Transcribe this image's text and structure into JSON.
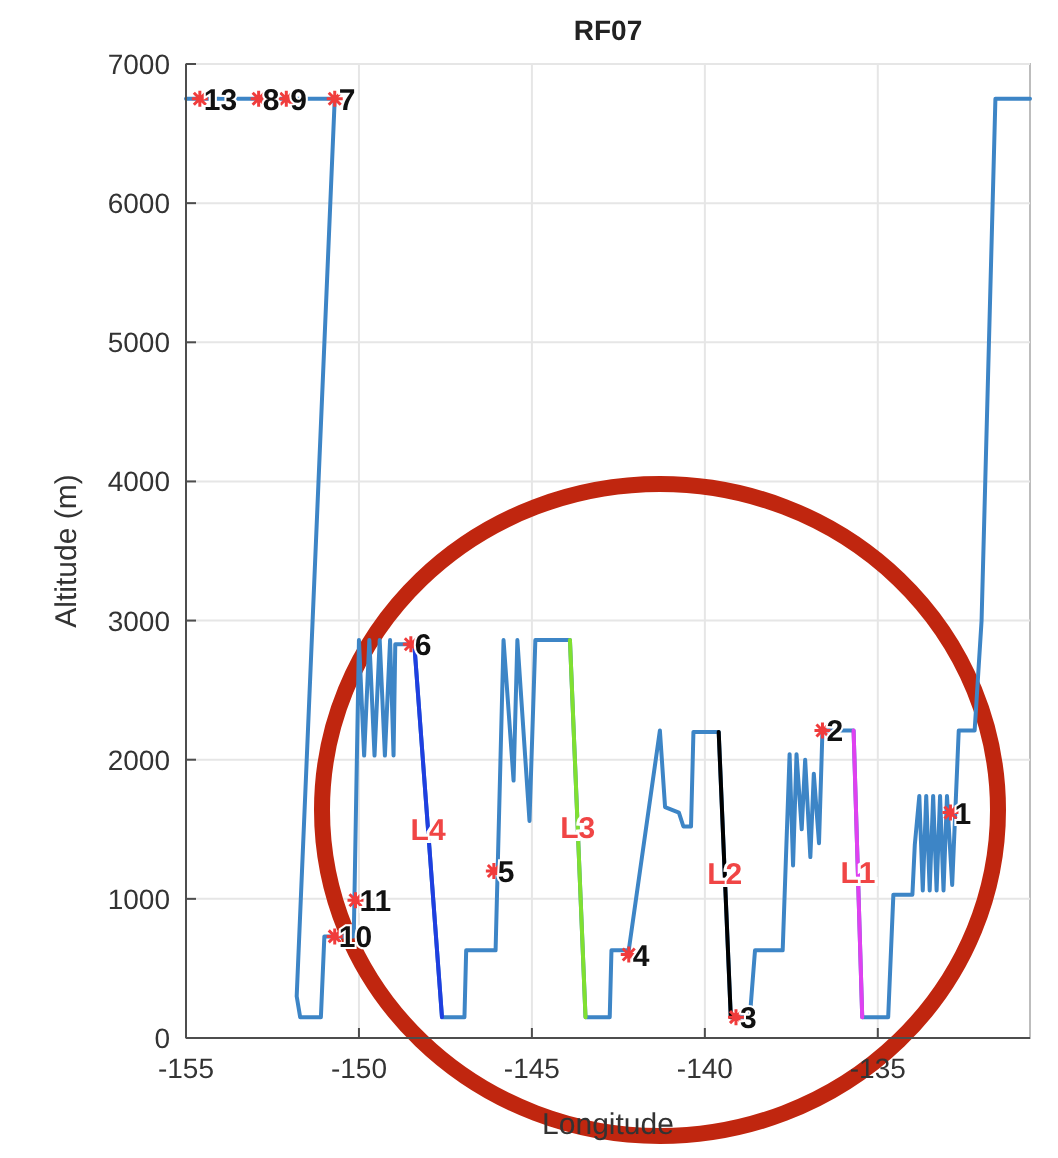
{
  "chart_data": {
    "type": "line",
    "title": "RF07",
    "xlabel": "Longitude",
    "ylabel": "Altitude (m)",
    "xlim": [
      -155,
      -130.6
    ],
    "xticks": [
      -155,
      -150,
      -145,
      -140,
      -135
    ],
    "ylim": [
      0,
      7000
    ],
    "yticks": [
      0,
      1000,
      2000,
      3000,
      4000,
      5000,
      6000,
      7000
    ],
    "grid": true,
    "line_style": "solid",
    "series": [
      {
        "color": "#3d85c6",
        "x": [
          -155,
          -150.7,
          -151.8,
          -151.7,
          -151.1,
          -151.0,
          -150.55,
          -150.15,
          -150.0,
          -149.85,
          -149.7,
          -149.55,
          -149.4,
          -149.25,
          -149.1,
          -149.0,
          -148.95,
          -148.4,
          -147.6,
          -146.95,
          -146.9,
          -146.05,
          -145.82,
          -145.53,
          -145.42,
          -145.07,
          -144.9,
          -143.9,
          -143.45,
          -142.75,
          -142.7,
          -142.2,
          -141.3,
          -141.15,
          -140.75,
          -140.62,
          -140.4,
          -140.33,
          -139.6,
          -139.25,
          -138.7,
          -138.55,
          -137.75,
          -137.55,
          -137.45,
          -137.35,
          -137.2,
          -137.1,
          -136.95,
          -136.85,
          -136.7,
          -136.6,
          -135.7,
          -135.45,
          -134.7,
          -134.55,
          -134.0,
          -133.93,
          -133.8,
          -133.7,
          -133.6,
          -133.5,
          -133.4,
          -133.3,
          -133.2,
          -133.1,
          -133.0,
          -132.85,
          -132.66,
          -132.2,
          -132.0,
          -131.6,
          -130.6
        ],
        "values": [
          6750,
          6750,
          300,
          150,
          150,
          730,
          730,
          730,
          2860,
          2030,
          2860,
          2030,
          2860,
          2030,
          2860,
          2030,
          2830,
          2830,
          150,
          150,
          630,
          630,
          2860,
          1850,
          2860,
          1560,
          2860,
          2860,
          150,
          150,
          630,
          630,
          2210,
          1660,
          1620,
          1520,
          1520,
          2200,
          2200,
          150,
          150,
          630,
          630,
          2040,
          1240,
          2040,
          1500,
          2000,
          1300,
          1900,
          1400,
          2210,
          2210,
          150,
          150,
          1030,
          1030,
          1390,
          1740,
          1060,
          1740,
          1060,
          1740,
          1060,
          1740,
          1060,
          1740,
          1100,
          2210,
          2210,
          3000,
          6750,
          6750
        ]
      },
      {
        "name": "L4",
        "color": "#1f3fe0",
        "x": [
          -148.4,
          -147.6
        ],
        "values": [
          2830,
          150
        ]
      },
      {
        "name": "L3",
        "color": "#80e030",
        "x": [
          -143.9,
          -143.45
        ],
        "values": [
          2860,
          150
        ]
      },
      {
        "name": "L2",
        "color": "#000000",
        "x": [
          -139.6,
          -139.25
        ],
        "values": [
          2200,
          150
        ]
      },
      {
        "name": "L1",
        "color": "#e040f0",
        "x": [
          -135.7,
          -135.45
        ],
        "values": [
          2210,
          150
        ]
      },
      {
        "type": "scatter",
        "color": "#f03c3c",
        "marker": "cross",
        "x": [
          -132.9,
          -136.6,
          -139.1,
          -142.2,
          -146.1,
          -148.5,
          -150.7,
          -150.1,
          -154.6,
          -152.9,
          -152.1,
          -150.7
        ],
        "values": [
          1620,
          2210,
          150,
          600,
          1200,
          2830,
          730,
          990,
          6750,
          6750,
          6750,
          6750
        ]
      }
    ],
    "annotations": [
      {
        "text": "1",
        "x": -132.9,
        "y": 1620
      },
      {
        "text": "2",
        "x": -136.6,
        "y": 2210
      },
      {
        "text": "3",
        "x": -139.1,
        "y": 150
      },
      {
        "text": "4",
        "x": -142.2,
        "y": 600
      },
      {
        "text": "5",
        "x": -146.1,
        "y": 1200
      },
      {
        "text": "6",
        "x": -148.5,
        "y": 2830
      },
      {
        "text": "10",
        "x": -150.7,
        "y": 730
      },
      {
        "text": "11",
        "x": -150.1,
        "y": 990
      },
      {
        "text": "13",
        "x": -154.6,
        "y": 6750
      },
      {
        "text": "8",
        "x": -152.9,
        "y": 6750
      },
      {
        "text": "9",
        "x": -152.1,
        "y": 6750
      },
      {
        "text": "7",
        "x": -150.7,
        "y": 6750
      }
    ]
  }
}
